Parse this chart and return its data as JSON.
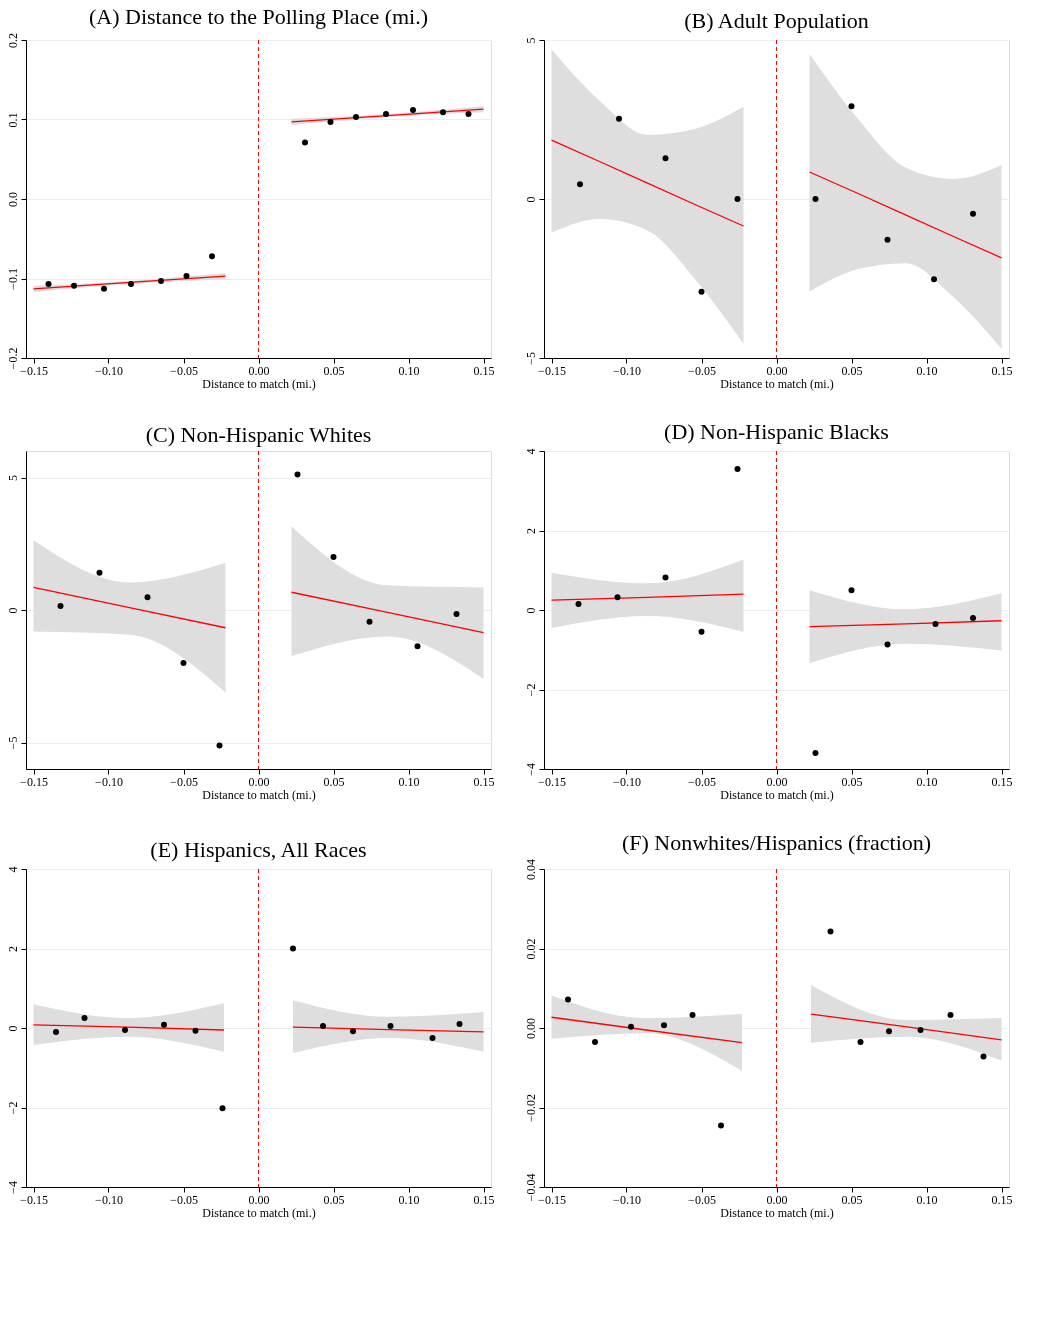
{
  "chart_data": [
    {
      "type": "scatter",
      "title": "(A) Distance to the Polling Place (mi.)",
      "xlabel": "Distance to match (mi.)",
      "xlim": [
        -0.155,
        0.155
      ],
      "ylim": [
        -0.2,
        0.2
      ],
      "grid": "y",
      "xticks": [
        {
          "value": -0.15,
          "label": "−0.15"
        },
        {
          "value": -0.1,
          "label": "−0.10"
        },
        {
          "value": -0.05,
          "label": "−0.05"
        },
        {
          "value": 0,
          "label": "0.00"
        },
        {
          "value": 0.05,
          "label": "0.05"
        },
        {
          "value": 0.1,
          "label": "0.10"
        },
        {
          "value": 0.15,
          "label": "0.15"
        }
      ],
      "yticks": [
        {
          "value": -0.2,
          "label": "−0.2"
        },
        {
          "value": -0.1,
          "label": "−0.1"
        },
        {
          "value": 0,
          "label": "0.0"
        },
        0.1,
        0.2
      ],
      "ref_lines": [
        {
          "axis": "x",
          "value": 0,
          "color": "#ff0000",
          "line_style": "dashed"
        }
      ],
      "series": [
        {
          "type": "line",
          "color": "#ff0000",
          "x": [
            -0.15,
            -0.086,
            -0.022
          ],
          "values": [
            -0.113,
            -0.105,
            -0.097
          ],
          "lower": [
            -0.117,
            -0.107,
            -0.101
          ],
          "upper": [
            -0.109,
            -0.103,
            -0.093
          ]
        },
        {
          "type": "line",
          "color": "#ff0000",
          "x": [
            0.022,
            0.086,
            0.15
          ],
          "values": [
            0.097,
            0.105,
            0.113
          ],
          "lower": [
            0.093,
            0.103,
            0.109
          ],
          "upper": [
            0.101,
            0.107,
            0.117
          ]
        },
        {
          "color": "#000000",
          "marker": "circle",
          "x": [
            -0.14,
            -0.123,
            -0.103,
            -0.085,
            -0.065,
            -0.048,
            -0.031,
            0.031,
            0.048,
            0.065,
            0.085,
            0.103,
            0.123,
            0.14
          ],
          "values": [
            -0.107,
            -0.109,
            -0.113,
            -0.107,
            -0.103,
            -0.097,
            -0.072,
            0.071,
            0.097,
            0.103,
            0.107,
            0.112,
            0.109,
            0.107
          ]
        }
      ]
    },
    {
      "type": "scatter",
      "title": "(B) Adult Population",
      "xlabel": "Distance to match (mi.)",
      "xlim": [
        -0.155,
        0.155
      ],
      "ylim": [
        -5,
        5
      ],
      "grid": "y",
      "xticks": [
        {
          "value": -0.15,
          "label": "−0.15"
        },
        {
          "value": -0.1,
          "label": "−0.10"
        },
        {
          "value": -0.05,
          "label": "−0.05"
        },
        {
          "value": 0,
          "label": "0.00"
        },
        {
          "value": 0.05,
          "label": "0.05"
        },
        {
          "value": 0.1,
          "label": "0.10"
        },
        {
          "value": 0.15,
          "label": "0.15"
        }
      ],
      "yticks": [
        {
          "value": -5,
          "label": "−5"
        },
        0,
        5
      ],
      "ref_lines": [
        {
          "axis": "x",
          "value": 0,
          "color": "#ff0000",
          "line_style": "dashed"
        }
      ],
      "series": [
        {
          "type": "line",
          "color": "#ff0000",
          "x": [
            -0.15,
            -0.118,
            -0.086,
            -0.054,
            -0.022
          ],
          "values": [
            1.85,
            1.18,
            0.5,
            -0.18,
            -0.85
          ],
          "lower": [
            -1.06,
            -0.63,
            -0.99,
            -2.54,
            -4.56
          ],
          "upper": [
            4.71,
            3.09,
            2.02,
            2.21,
            2.91
          ]
        },
        {
          "type": "line",
          "color": "#ff0000",
          "x": [
            0.022,
            0.054,
            0.086,
            0.118,
            0.15
          ],
          "values": [
            0.85,
            0.18,
            -0.5,
            -1.18,
            -1.85
          ],
          "lower": [
            -2.91,
            -2.21,
            -2.02,
            -3.09,
            -4.71
          ],
          "upper": [
            4.56,
            2.54,
            0.99,
            0.63,
            1.06
          ]
        },
        {
          "color": "#000000",
          "marker": "circle",
          "x": [
            -0.131,
            -0.105,
            -0.074,
            -0.05,
            -0.026,
            0.026,
            0.05,
            0.074,
            0.105,
            0.131
          ],
          "values": [
            0.46,
            2.52,
            1.28,
            -2.92,
            0,
            0,
            2.92,
            -1.28,
            -2.52,
            -0.46
          ]
        }
      ]
    },
    {
      "type": "scatter",
      "title": "(C) Non-Hispanic Whites",
      "xlabel": "Distance to match (mi.)",
      "xlim": [
        -0.155,
        0.155
      ],
      "ylim": [
        -6,
        6
      ],
      "grid": "y",
      "xticks": [
        {
          "value": -0.15,
          "label": "−0.15"
        },
        {
          "value": -0.1,
          "label": "−0.10"
        },
        {
          "value": -0.05,
          "label": "−0.05"
        },
        {
          "value": 0,
          "label": "0.00"
        },
        {
          "value": 0.05,
          "label": "0.05"
        },
        {
          "value": 0.1,
          "label": "0.10"
        },
        {
          "value": 0.15,
          "label": "0.15"
        }
      ],
      "yticks": [
        {
          "value": -5,
          "label": "−5"
        },
        0,
        5
      ],
      "ref_lines": [
        {
          "axis": "x",
          "value": 0,
          "color": "#ff0000",
          "line_style": "dashed"
        }
      ],
      "series": [
        {
          "type": "line",
          "color": "#ff0000",
          "x": [
            -0.15,
            -0.086,
            -0.022
          ],
          "values": [
            0.85,
            0.09,
            -0.67
          ],
          "lower": [
            -0.81,
            -0.93,
            -3.11
          ],
          "upper": [
            2.63,
            1.04,
            1.78
          ]
        },
        {
          "type": "line",
          "color": "#ff0000",
          "x": [
            0.022,
            0.086,
            0.15
          ],
          "values": [
            0.67,
            -0.09,
            -0.85
          ],
          "lower": [
            -1.74,
            -1.0,
            -2.6
          ],
          "upper": [
            3.15,
            0.93,
            0.85
          ]
        },
        {
          "color": "#000000",
          "marker": "circle",
          "x": [
            -0.132,
            -0.106,
            -0.074,
            -0.05,
            -0.026,
            0.026,
            0.05,
            0.074,
            0.106,
            0.132
          ],
          "values": [
            0.15,
            1.41,
            0.48,
            -2.0,
            -5.11,
            5.11,
            2.0,
            -0.44,
            -1.37,
            -0.15
          ]
        }
      ]
    },
    {
      "type": "scatter",
      "title": "(D) Non-Hispanic Blacks",
      "xlabel": "Distance to match (mi.)",
      "xlim": [
        -0.155,
        0.155
      ],
      "ylim": [
        -4,
        4
      ],
      "grid": "y",
      "xticks": [
        {
          "value": -0.15,
          "label": "−0.15"
        },
        {
          "value": -0.1,
          "label": "−0.10"
        },
        {
          "value": -0.05,
          "label": "−0.05"
        },
        {
          "value": 0,
          "label": "0.00"
        },
        {
          "value": 0.05,
          "label": "0.05"
        },
        {
          "value": 0.1,
          "label": "0.10"
        },
        {
          "value": 0.15,
          "label": "0.15"
        }
      ],
      "yticks": [
        {
          "value": -4,
          "label": "−4"
        },
        {
          "value": -2,
          "label": "−2"
        },
        0,
        2,
        4
      ],
      "ref_lines": [
        {
          "axis": "x",
          "value": 0,
          "color": "#ff0000",
          "line_style": "dashed"
        }
      ],
      "series": [
        {
          "type": "line",
          "color": "#ff0000",
          "x": [
            -0.15,
            -0.086,
            -0.022
          ],
          "values": [
            0.25,
            0.32,
            0.4
          ],
          "lower": [
            -0.45,
            -0.15,
            -0.55
          ],
          "upper": [
            0.94,
            0.67,
            1.27
          ]
        },
        {
          "type": "line",
          "color": "#ff0000",
          "x": [
            0.022,
            0.086,
            0.15
          ],
          "values": [
            -0.42,
            -0.35,
            -0.27
          ],
          "lower": [
            -1.34,
            -0.85,
            -1.02
          ],
          "upper": [
            0.5,
            0.02,
            0.42
          ]
        },
        {
          "color": "#000000",
          "marker": "circle",
          "x": [
            -0.132,
            -0.106,
            -0.074,
            -0.05,
            -0.026,
            0.026,
            0.05,
            0.074,
            0.106,
            0.131
          ],
          "values": [
            0.15,
            0.32,
            0.82,
            -0.55,
            3.55,
            -3.6,
            0.5,
            -0.87,
            -0.35,
            -0.2
          ]
        }
      ]
    },
    {
      "type": "scatter",
      "title": "(E) Hispanics, All Races",
      "xlabel": "Distance to match (mi.)",
      "xlim": [
        -0.155,
        0.155
      ],
      "ylim": [
        -4,
        4
      ],
      "grid": "y",
      "xticks": [
        {
          "value": -0.15,
          "label": "−0.15"
        },
        {
          "value": -0.1,
          "label": "−0.10"
        },
        {
          "value": -0.05,
          "label": "−0.05"
        },
        {
          "value": 0,
          "label": "0.00"
        },
        {
          "value": 0.05,
          "label": "0.05"
        },
        {
          "value": 0.1,
          "label": "0.10"
        },
        {
          "value": 0.15,
          "label": "0.15"
        }
      ],
      "yticks": [
        {
          "value": -4,
          "label": "−4"
        },
        {
          "value": -2,
          "label": "−2"
        },
        0,
        2,
        4
      ],
      "ref_lines": [
        {
          "axis": "x",
          "value": 0,
          "color": "#ff0000",
          "line_style": "dashed"
        }
      ],
      "series": [
        {
          "type": "line",
          "color": "#ff0000",
          "x": [
            -0.15,
            -0.087,
            -0.023
          ],
          "values": [
            0.08,
            0.02,
            -0.05
          ],
          "lower": [
            -0.43,
            -0.22,
            -0.6
          ],
          "upper": [
            0.6,
            0.25,
            0.62
          ]
        },
        {
          "type": "line",
          "color": "#ff0000",
          "x": [
            0.023,
            0.087,
            0.15
          ],
          "values": [
            0.02,
            -0.04,
            -0.1
          ],
          "lower": [
            -0.63,
            -0.25,
            -0.6
          ],
          "upper": [
            0.7,
            0.28,
            0.4
          ]
        },
        {
          "color": "#000000",
          "marker": "circle",
          "x": [
            -0.135,
            -0.116,
            -0.089,
            -0.063,
            -0.042,
            -0.024,
            0.023,
            0.043,
            0.063,
            0.088,
            0.116,
            0.134
          ],
          "values": [
            -0.1,
            0.25,
            -0.05,
            0.08,
            -0.07,
            -2.02,
            2.0,
            0.05,
            -0.08,
            0.05,
            -0.25,
            0.1
          ]
        }
      ]
    },
    {
      "type": "scatter",
      "title": "(F) Nonwhites/Hispanics (fraction)",
      "xlabel": "Distance to match (mi.)",
      "xlim": [
        -0.155,
        0.155
      ],
      "ylim": [
        -0.04,
        0.04
      ],
      "grid": "y",
      "xticks": [
        {
          "value": -0.15,
          "label": "−0.15"
        },
        {
          "value": -0.1,
          "label": "−0.10"
        },
        {
          "value": -0.05,
          "label": "−0.05"
        },
        {
          "value": 0,
          "label": "0.00"
        },
        {
          "value": 0.05,
          "label": "0.05"
        },
        {
          "value": 0.1,
          "label": "0.10"
        },
        {
          "value": 0.15,
          "label": "0.15"
        }
      ],
      "yticks": [
        {
          "value": -0.04,
          "label": "−0.04"
        },
        {
          "value": -0.02,
          "label": "−0.02"
        },
        {
          "value": 0,
          "label": "0.00"
        },
        0.02,
        0.04
      ],
      "ref_lines": [
        {
          "axis": "x",
          "value": 0,
          "color": "#ff0000",
          "line_style": "dashed"
        }
      ],
      "series": [
        {
          "type": "line",
          "color": "#ff0000",
          "x": [
            -0.15,
            -0.087,
            -0.023
          ],
          "values": [
            0.0027,
            -0.0005,
            -0.0037
          ],
          "lower": [
            -0.0027,
            -0.0013,
            -0.0108
          ],
          "upper": [
            0.0082,
            0.0025,
            0.0035
          ]
        },
        {
          "type": "line",
          "color": "#ff0000",
          "x": [
            0.023,
            0.087,
            0.15
          ],
          "values": [
            0.0035,
            0.0003,
            -0.003
          ],
          "lower": [
            -0.0037,
            -0.0022,
            -0.0082
          ],
          "upper": [
            0.0108,
            0.002,
            0.0025
          ]
        },
        {
          "color": "#000000",
          "marker": "circle",
          "x": [
            -0.139,
            -0.121,
            -0.097,
            -0.075,
            -0.056,
            -0.037,
            0.036,
            0.056,
            0.075,
            0.096,
            0.116,
            0.138
          ],
          "values": [
            0.0072,
            -0.0035,
            0.0003,
            0.0007,
            0.0033,
            -0.0245,
            0.0243,
            -0.0035,
            -0.0008,
            -0.0005,
            0.0033,
            -0.0072
          ]
        }
      ]
    }
  ]
}
